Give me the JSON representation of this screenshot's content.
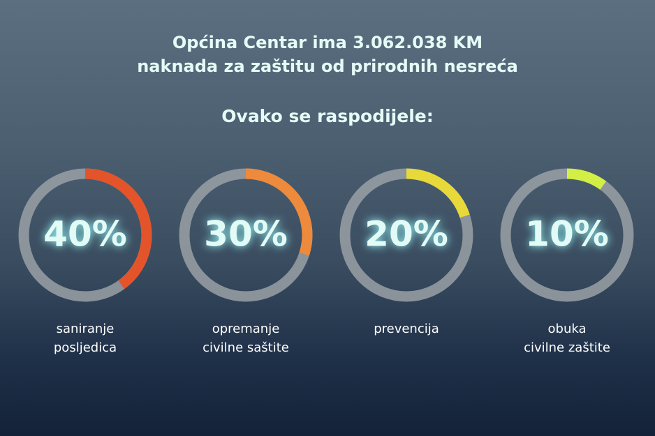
{
  "chart_data": {
    "type": "donut",
    "title": "Općina Centar ima 3.062.038 KM\nnaknada za zaštitu od prirodnih nesreća",
    "subtitle": "Ovako se raspodijele:",
    "categories": [
      "saniranje\nposljedica",
      "opremanje\ncivilne saštite",
      "prevencija",
      "obuka\ncivilne zaštite"
    ],
    "values": [
      40,
      30,
      20,
      10
    ],
    "value_labels": [
      "40%",
      "30%",
      "20%",
      "10%"
    ],
    "colors": [
      "#e4542a",
      "#ee8a3c",
      "#e8d93a",
      "#d3ee45"
    ]
  }
}
